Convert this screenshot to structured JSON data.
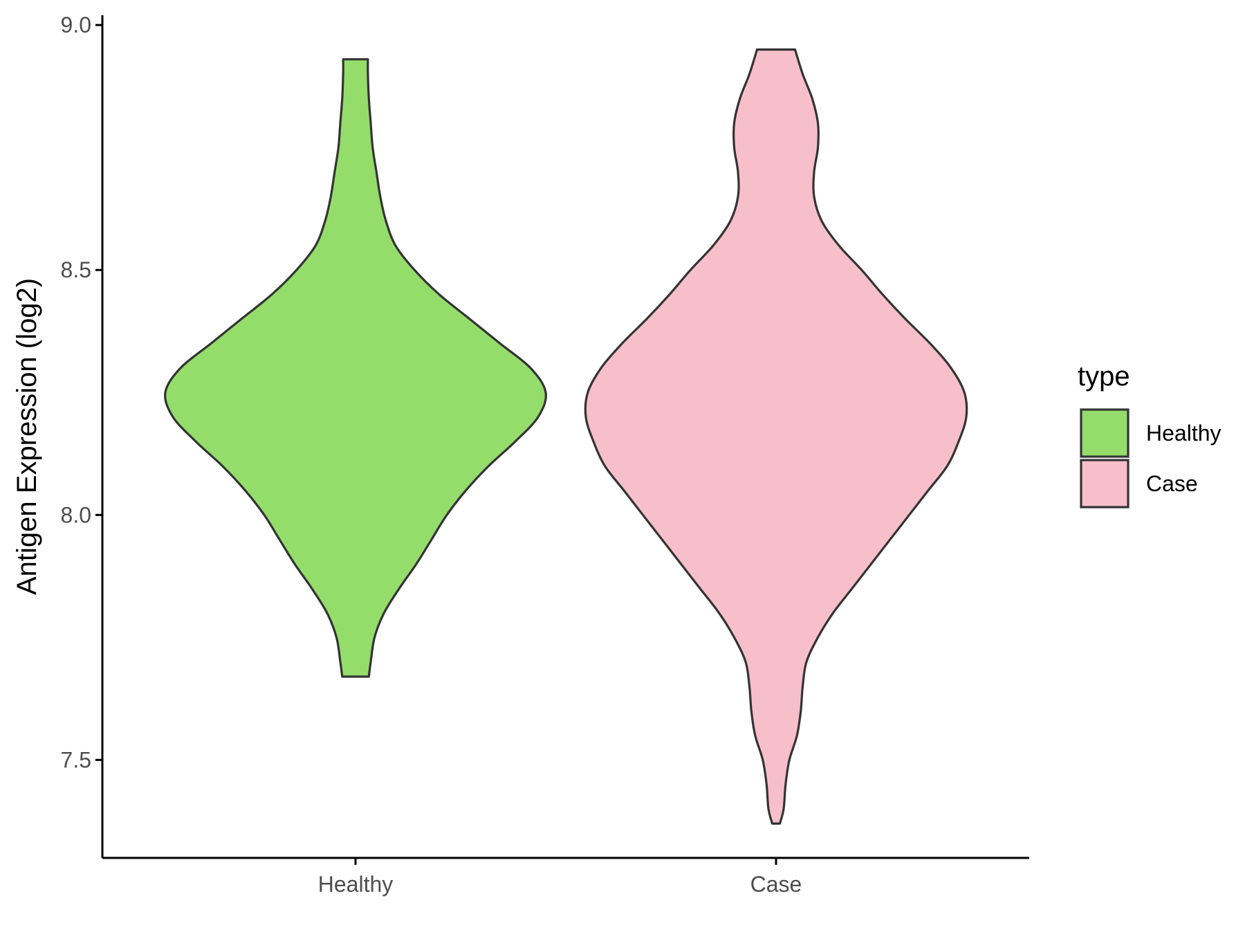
{
  "chart_data": {
    "type": "violin",
    "title": "",
    "xlabel": "",
    "ylabel": "Antigen Expression (log2)",
    "ylim": [
      7.3,
      9.02
    ],
    "y_ticks": [
      "7.5",
      "8.0",
      "8.5",
      "9.0"
    ],
    "y_tick_values": [
      7.5,
      8.0,
      8.5,
      9.0
    ],
    "categories": [
      "Healthy",
      "Case"
    ],
    "grid": false,
    "legend": {
      "title": "type",
      "position": "right",
      "entries": [
        "Healthy",
        "Case"
      ]
    },
    "series": [
      {
        "name": "Healthy",
        "color": "#94DD6B",
        "min": 7.67,
        "max": 8.93,
        "density_profile": [
          [
            7.67,
            0.07
          ],
          [
            7.7,
            0.08
          ],
          [
            7.75,
            0.1
          ],
          [
            7.8,
            0.15
          ],
          [
            7.85,
            0.23
          ],
          [
            7.9,
            0.32
          ],
          [
            7.95,
            0.4
          ],
          [
            8.0,
            0.48
          ],
          [
            8.05,
            0.58
          ],
          [
            8.1,
            0.7
          ],
          [
            8.15,
            0.84
          ],
          [
            8.2,
            0.96
          ],
          [
            8.25,
            1.0
          ],
          [
            8.3,
            0.92
          ],
          [
            8.35,
            0.76
          ],
          [
            8.4,
            0.6
          ],
          [
            8.45,
            0.44
          ],
          [
            8.5,
            0.31
          ],
          [
            8.55,
            0.21
          ],
          [
            8.6,
            0.16
          ],
          [
            8.65,
            0.13
          ],
          [
            8.7,
            0.11
          ],
          [
            8.75,
            0.09
          ],
          [
            8.8,
            0.08
          ],
          [
            8.85,
            0.07
          ],
          [
            8.9,
            0.065
          ],
          [
            8.93,
            0.065
          ]
        ]
      },
      {
        "name": "Case",
        "color": "#F7BFCA",
        "min": 7.37,
        "max": 8.95,
        "density_profile": [
          [
            7.37,
            0.02
          ],
          [
            7.4,
            0.04
          ],
          [
            7.45,
            0.05
          ],
          [
            7.5,
            0.07
          ],
          [
            7.55,
            0.11
          ],
          [
            7.6,
            0.13
          ],
          [
            7.65,
            0.14
          ],
          [
            7.7,
            0.16
          ],
          [
            7.75,
            0.22
          ],
          [
            7.8,
            0.3
          ],
          [
            7.85,
            0.4
          ],
          [
            7.9,
            0.5
          ],
          [
            7.95,
            0.6
          ],
          [
            8.0,
            0.7
          ],
          [
            8.05,
            0.8
          ],
          [
            8.1,
            0.9
          ],
          [
            8.15,
            0.96
          ],
          [
            8.2,
            1.0
          ],
          [
            8.25,
            0.99
          ],
          [
            8.3,
            0.92
          ],
          [
            8.35,
            0.81
          ],
          [
            8.4,
            0.68
          ],
          [
            8.45,
            0.56
          ],
          [
            8.5,
            0.45
          ],
          [
            8.55,
            0.33
          ],
          [
            8.6,
            0.24
          ],
          [
            8.65,
            0.2
          ],
          [
            8.7,
            0.2
          ],
          [
            8.75,
            0.22
          ],
          [
            8.8,
            0.22
          ],
          [
            8.85,
            0.19
          ],
          [
            8.9,
            0.14
          ],
          [
            8.95,
            0.1
          ]
        ]
      }
    ]
  }
}
